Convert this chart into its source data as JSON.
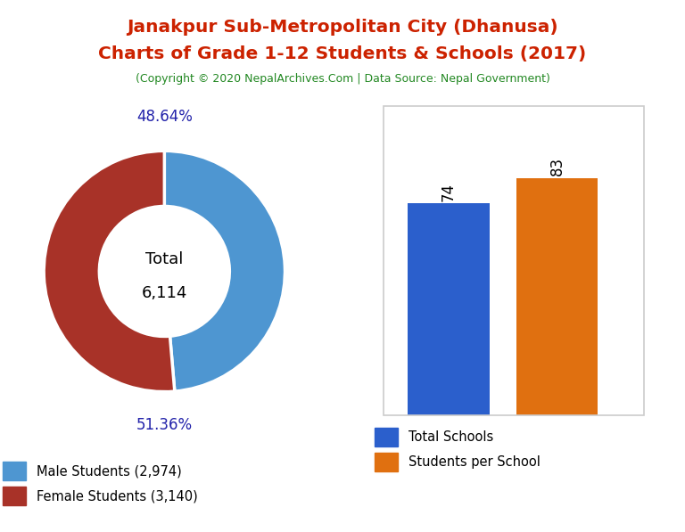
{
  "title_line1": "Janakpur Sub-Metropolitan City (Dhanusa)",
  "title_line2": "Charts of Grade 1-12 Students & Schools (2017)",
  "subtitle": "(Copyright © 2020 NepalArchives.Com | Data Source: Nepal Government)",
  "title_color": "#cc2200",
  "subtitle_color": "#228822",
  "male_students": 2974,
  "female_students": 3140,
  "total_students": 6114,
  "male_pct": "48.64%",
  "female_pct": "51.36%",
  "male_color": "#4e96d1",
  "female_color": "#a83228",
  "total_schools": 74,
  "students_per_school": 83,
  "bar_color_schools": "#2b5fcc",
  "bar_color_students": "#e07010",
  "legend_male": "Male Students (2,974)",
  "legend_female": "Female Students (3,140)",
  "legend_schools": "Total Schools",
  "legend_per_school": "Students per School",
  "pct_label_color": "#2222aa",
  "background_color": "#ffffff",
  "center_text_color": "#000000",
  "bar_label_color": "#000000",
  "border_color": "#cccccc"
}
